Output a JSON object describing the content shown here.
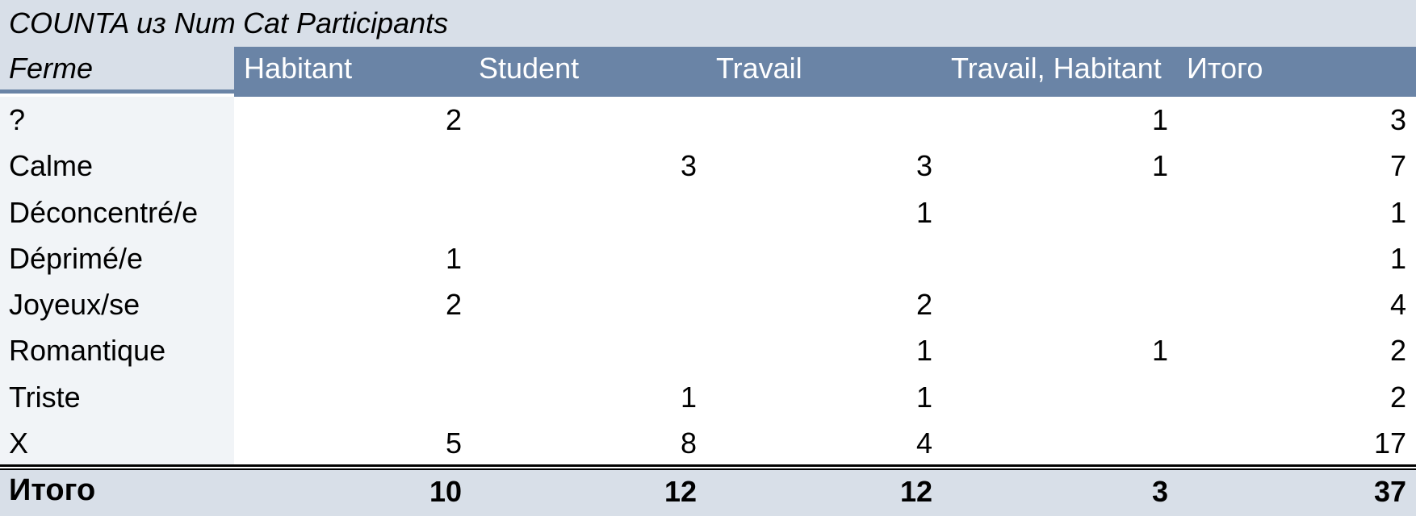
{
  "pivot": {
    "aggregate_label": "COUNTA из Num",
    "column_field": "Cat Participants",
    "row_field": "Ferme",
    "columns": [
      "Habitant",
      "Student",
      "Travail",
      "Travail, Habitant",
      "Итого"
    ],
    "rows": [
      {
        "label": "?",
        "values": [
          "2",
          "",
          "",
          "1",
          "3"
        ]
      },
      {
        "label": "Calme",
        "values": [
          "",
          "3",
          "3",
          "1",
          "7"
        ]
      },
      {
        "label": "Déconcentré/e",
        "values": [
          "",
          "",
          "1",
          "",
          "1"
        ]
      },
      {
        "label": "Déprimé/e",
        "values": [
          "1",
          "",
          "",
          "",
          "1"
        ]
      },
      {
        "label": "Joyeux/se",
        "values": [
          "2",
          "",
          "2",
          "",
          "4"
        ]
      },
      {
        "label": "Romantique",
        "values": [
          "",
          "",
          "1",
          "1",
          "2"
        ]
      },
      {
        "label": "Triste",
        "values": [
          "",
          "1",
          "1",
          "",
          "2"
        ]
      },
      {
        "label": "X",
        "values": [
          "5",
          "8",
          "4",
          "",
          "17"
        ]
      }
    ],
    "total": {
      "label": "Итого",
      "values": [
        "10",
        "12",
        "12",
        "3",
        "37"
      ]
    }
  },
  "colors": {
    "header_band": "#6a84a6",
    "title_band": "#d8dfe8",
    "label_column": "#f1f4f7"
  }
}
